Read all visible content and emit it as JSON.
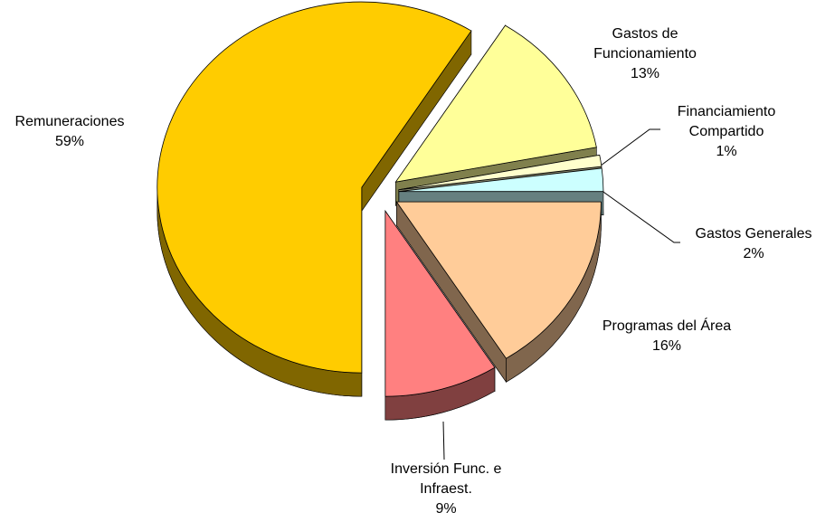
{
  "chart_data": {
    "type": "pie",
    "categories": [
      "Remuneraciones",
      "Gastos de Funcionamiento",
      "Financiamiento Compartido",
      "Gastos Generales",
      "Programas del Área",
      "Inversión Func. e Infraest."
    ],
    "values": [
      59,
      13,
      1,
      2,
      16,
      9
    ],
    "value_labels": [
      "59%",
      "13%",
      "1%",
      "2%",
      "16%",
      "9%"
    ],
    "colors": [
      "#FFCC00",
      "#FFFF99",
      "#FFFFCC",
      "#CCFFFF",
      "#FFCC99",
      "#FF8080"
    ]
  }
}
